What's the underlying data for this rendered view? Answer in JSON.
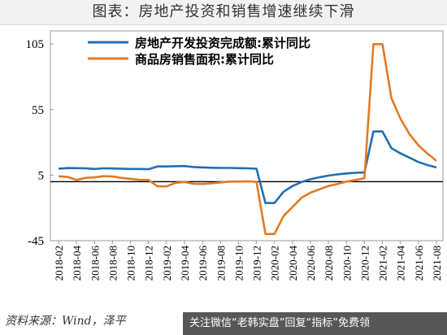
{
  "figure_title": "图表：房地产投资和销售增速继续下滑",
  "source_text": "资料来源：Wind，泽平",
  "banner_text": "关注微信“老韩实盘”回复“指标”免费领",
  "colors": {
    "investment": "#1f6fb2",
    "sales": "#e07b26",
    "zero_line": "#000000"
  },
  "chart_data": {
    "type": "line",
    "ylim": [
      -45,
      115
    ],
    "yticks": [
      105,
      55,
      5,
      -45
    ],
    "grid": false,
    "legend_position": "top-center",
    "x": [
      "2018-02",
      "2018-03",
      "2018-04",
      "2018-05",
      "2018-06",
      "2018-07",
      "2018-08",
      "2018-09",
      "2018-10",
      "2018-11",
      "2018-12",
      "2019-01",
      "2019-02",
      "2019-03",
      "2019-04",
      "2019-05",
      "2019-06",
      "2019-07",
      "2019-08",
      "2019-09",
      "2019-10",
      "2019-11",
      "2019-12",
      "2020-01",
      "2020-02",
      "2020-03",
      "2020-04",
      "2020-05",
      "2020-06",
      "2020-07",
      "2020-08",
      "2020-09",
      "2020-10",
      "2020-11",
      "2020-12",
      "2021-01",
      "2021-02",
      "2021-03",
      "2021-04",
      "2021-05",
      "2021-06",
      "2021-07",
      "2021-08"
    ],
    "xtick_labels": [
      "2018-02",
      "2018-04",
      "2018-06",
      "2018-08",
      "2018-10",
      "2018-12",
      "2019-02",
      "2019-04",
      "2019-06",
      "2019-08",
      "2019-10",
      "2019-12",
      "2020-02",
      "2020-04",
      "2020-06",
      "2020-08",
      "2020-10",
      "2020-12",
      "2021-02",
      "2021-04",
      "2021-06",
      "2021-08"
    ],
    "series": [
      {
        "name": "房地产开发投资完成额:累计同比",
        "color": "#1f6fb2",
        "values": [
          9.9,
          10.4,
          10.3,
          10.2,
          9.7,
          10.2,
          10.1,
          9.9,
          9.7,
          9.7,
          9.5,
          11.6,
          11.6,
          11.8,
          11.9,
          11.2,
          10.9,
          10.6,
          10.5,
          10.5,
          10.3,
          10.2,
          9.9,
          -16.3,
          -16.3,
          -7.7,
          -3.3,
          -0.3,
          1.9,
          3.4,
          4.6,
          5.6,
          6.3,
          6.8,
          7.0,
          38.3,
          38.3,
          25.6,
          21.6,
          18.3,
          15.0,
          12.7,
          10.9
        ]
      },
      {
        "name": "商品房销售面积:累计同比",
        "color": "#e07b26",
        "values": [
          4.1,
          3.6,
          1.3,
          2.9,
          3.3,
          4.2,
          4.0,
          2.9,
          2.2,
          1.4,
          1.3,
          -3.6,
          -3.6,
          -0.9,
          -0.3,
          -1.6,
          -1.8,
          -1.3,
          -0.6,
          0.1,
          0.1,
          0.2,
          -0.1,
          -39.9,
          -39.9,
          -26.3,
          -19.3,
          -12.3,
          -8.4,
          -5.8,
          -3.3,
          -1.8,
          0.0,
          1.3,
          2.6,
          104.9,
          104.9,
          63.8,
          48.1,
          36.3,
          27.7,
          21.5,
          15.9
        ]
      }
    ]
  }
}
